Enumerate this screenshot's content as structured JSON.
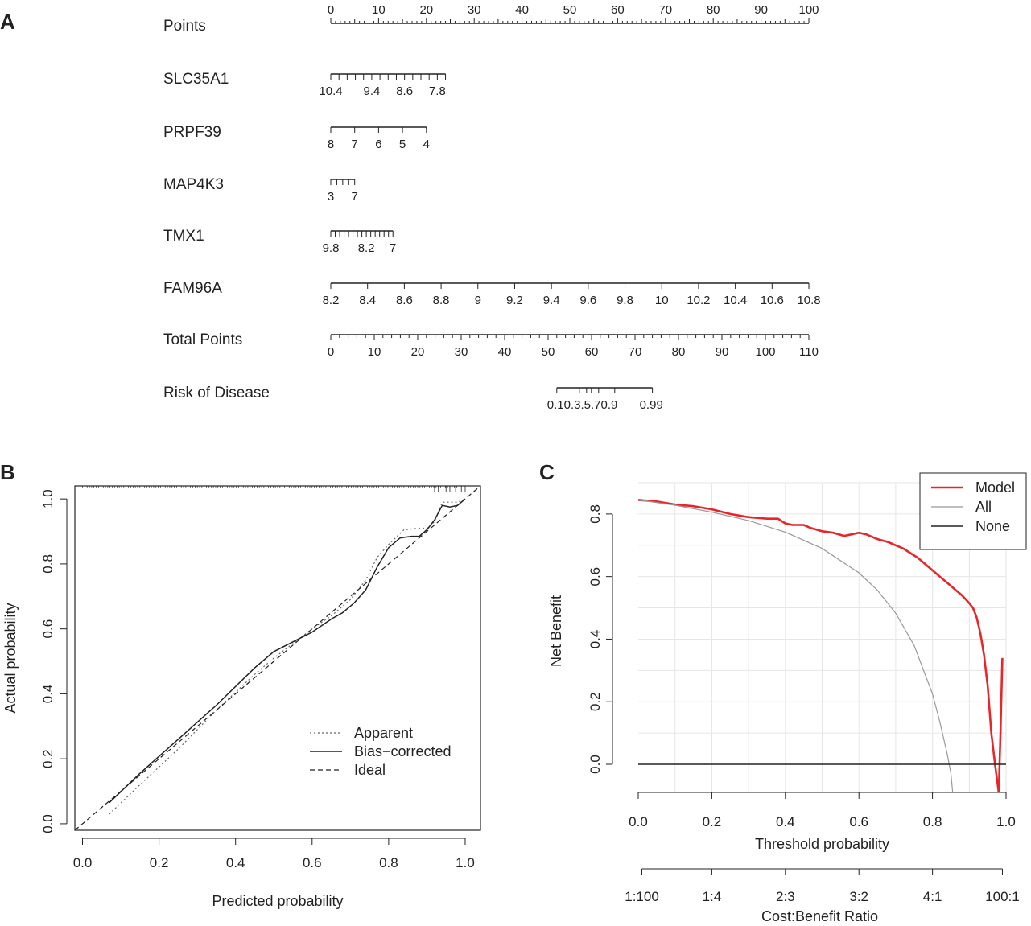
{
  "panels": {
    "a": "A",
    "b": "B",
    "c": "C"
  },
  "chart_data": [
    {
      "type": "nomogram",
      "rows": [
        {
          "label": "Points",
          "values": [
            0,
            10,
            20,
            30,
            40,
            50,
            60,
            70,
            80,
            90,
            100
          ],
          "label_above": true
        },
        {
          "label": "SLC35A1",
          "values": [
            10.4,
            10.2,
            10,
            9.8,
            9.6,
            9.4,
            9.2,
            9,
            8.8,
            8.6,
            8.4,
            8.2,
            8,
            7.8,
            7.6
          ],
          "tick_labels": [
            "10.4",
            "9.4",
            "8.6",
            "7.8"
          ],
          "point_range": [
            0,
            24
          ]
        },
        {
          "label": "PRPF39",
          "values": [
            8,
            7,
            6,
            5,
            4
          ],
          "tick_labels": [
            "8",
            "7",
            "6",
            "5",
            "4"
          ],
          "point_range": [
            0,
            20
          ]
        },
        {
          "label": "MAP4K3",
          "values": [
            3,
            4,
            5,
            6,
            7
          ],
          "tick_labels": [
            "3",
            "7"
          ],
          "point_range": [
            0,
            5
          ]
        },
        {
          "label": "TMX1",
          "values": [
            9.8,
            9.6,
            9.4,
            9.2,
            9,
            8.8,
            8.6,
            8.4,
            8.2,
            8,
            7.8,
            7.6,
            7.4,
            7.2,
            7
          ],
          "tick_labels": [
            "9.8",
            "8.2",
            "7"
          ],
          "point_range": [
            0,
            13
          ]
        },
        {
          "label": "FAM96A",
          "values": [
            8.2,
            8.4,
            8.6,
            8.8,
            9,
            9.2,
            9.4,
            9.6,
            9.8,
            10,
            10.2,
            10.4,
            10.6,
            10.8
          ],
          "tick_labels": [
            "8.2",
            "8.4",
            "8.6",
            "8.8",
            "9",
            "9.2",
            "9.4",
            "9.6",
            "9.8",
            "10",
            "10.2",
            "10.4",
            "10.6",
            "10.8"
          ],
          "point_range": [
            0,
            100
          ]
        },
        {
          "label": "Total Points",
          "values": [
            0,
            10,
            20,
            30,
            40,
            50,
            60,
            70,
            80,
            90,
            100,
            110
          ],
          "scale": "total"
        },
        {
          "label": "Risk of Disease",
          "scale": "risk",
          "tick_label_string": "0.10.3.5.70.9",
          "end_label": "0.99",
          "risk_points": [
            52,
            74
          ]
        }
      ]
    },
    {
      "type": "line",
      "title": "",
      "xlabel": "Predicted probability",
      "ylabel": "Actual probability",
      "xlim": [
        -0.02,
        1.04
      ],
      "ylim": [
        -0.02,
        1.04
      ],
      "xticks": [
        0,
        0.2,
        0.4,
        0.6,
        0.8,
        1
      ],
      "yticks": [
        0,
        0.2,
        0.4,
        0.6,
        0.8,
        1
      ],
      "xtick_labels": [
        "0.0",
        "0.2",
        "0.4",
        "0.6",
        "0.8",
        "1.0"
      ],
      "ytick_labels": [
        "0.0",
        "0.2",
        "0.4",
        "0.6",
        "0.8",
        "1.0"
      ],
      "legend": [
        "Apparent",
        "Bias−corrected",
        "Ideal"
      ],
      "legend_position": "bottom-right",
      "series": [
        {
          "name": "Apparent",
          "style": "dotted",
          "x": [
            0.07,
            0.15,
            0.25,
            0.35,
            0.45,
            0.5,
            0.55,
            0.6,
            0.65,
            0.7,
            0.74,
            0.77,
            0.8,
            0.84,
            0.88,
            0.9,
            0.92,
            0.94,
            0.96,
            0.98,
            1.0
          ],
          "y": [
            0.03,
            0.12,
            0.23,
            0.35,
            0.46,
            0.51,
            0.555,
            0.6,
            0.64,
            0.69,
            0.75,
            0.82,
            0.86,
            0.905,
            0.91,
            0.91,
            0.93,
            0.99,
            0.99,
            0.99,
            1.0
          ]
        },
        {
          "name": "Bias−corrected",
          "style": "solid",
          "x": [
            0.07,
            0.15,
            0.25,
            0.35,
            0.45,
            0.5,
            0.55,
            0.6,
            0.65,
            0.68,
            0.71,
            0.74,
            0.77,
            0.8,
            0.83,
            0.86,
            0.88,
            0.9,
            0.92,
            0.94,
            0.96,
            0.98,
            1.0
          ],
          "y": [
            0.065,
            0.155,
            0.26,
            0.365,
            0.48,
            0.53,
            0.56,
            0.59,
            0.63,
            0.65,
            0.68,
            0.72,
            0.79,
            0.85,
            0.88,
            0.885,
            0.885,
            0.905,
            0.935,
            0.98,
            0.975,
            0.98,
            1.0
          ]
        },
        {
          "name": "Ideal",
          "style": "dashed",
          "x": [
            -0.02,
            1.04
          ],
          "y": [
            -0.02,
            1.04
          ]
        }
      ]
    },
    {
      "type": "line",
      "title": "",
      "xlabel": "Threshold probability",
      "ylabel": "Net Benefit",
      "xlim": [
        0,
        1
      ],
      "ylim": [
        -0.09,
        0.9
      ],
      "xticks": [
        0,
        0.2,
        0.4,
        0.6,
        0.8,
        1
      ],
      "yticks": [
        0,
        0.2,
        0.4,
        0.6,
        0.8
      ],
      "xtick_labels": [
        "0.0",
        "0.2",
        "0.4",
        "0.6",
        "0.8",
        "1.0"
      ],
      "ytick_labels": [
        "0.0",
        "0.2",
        "0.4",
        "0.6",
        "0.8"
      ],
      "secondary_xlabel": "Cost:Benefit Ratio",
      "secondary_ticks": [
        0.0099,
        0.2,
        0.4,
        0.6,
        0.8,
        0.9901
      ],
      "secondary_tick_labels": [
        "1:100",
        "1:4",
        "2:3",
        "3:2",
        "4:1",
        "100:1"
      ],
      "legend": [
        "Model",
        "All",
        "None"
      ],
      "legend_position": "top-right",
      "grid": true,
      "series": [
        {
          "name": "Model",
          "color": "#e8262a",
          "x": [
            0,
            0.05,
            0.1,
            0.15,
            0.2,
            0.25,
            0.3,
            0.35,
            0.38,
            0.4,
            0.42,
            0.45,
            0.47,
            0.5,
            0.53,
            0.56,
            0.58,
            0.6,
            0.62,
            0.65,
            0.68,
            0.7,
            0.72,
            0.74,
            0.76,
            0.78,
            0.8,
            0.82,
            0.84,
            0.86,
            0.88,
            0.9,
            0.91,
            0.92,
            0.93,
            0.94,
            0.95,
            0.96,
            0.97,
            0.98,
            0.985,
            0.99
          ],
          "y": [
            0.845,
            0.84,
            0.83,
            0.825,
            0.815,
            0.8,
            0.79,
            0.785,
            0.785,
            0.77,
            0.765,
            0.765,
            0.755,
            0.745,
            0.74,
            0.73,
            0.735,
            0.74,
            0.735,
            0.72,
            0.71,
            0.7,
            0.69,
            0.675,
            0.66,
            0.64,
            0.62,
            0.6,
            0.58,
            0.56,
            0.54,
            0.515,
            0.5,
            0.47,
            0.42,
            0.35,
            0.25,
            0.1,
            0.0,
            -0.09,
            0.1,
            0.34
          ]
        },
        {
          "name": "All",
          "color": "#999999",
          "x": [
            0,
            0.1,
            0.2,
            0.3,
            0.4,
            0.5,
            0.6,
            0.65,
            0.7,
            0.75,
            0.8,
            0.82,
            0.84,
            0.85,
            0.855
          ],
          "y": [
            0.845,
            0.828,
            0.806,
            0.779,
            0.742,
            0.69,
            0.612,
            0.557,
            0.483,
            0.38,
            0.225,
            0.136,
            0.033,
            -0.03,
            -0.09
          ]
        },
        {
          "name": "None",
          "color": "#222222",
          "x": [
            0,
            1
          ],
          "y": [
            0,
            0
          ]
        }
      ]
    }
  ]
}
